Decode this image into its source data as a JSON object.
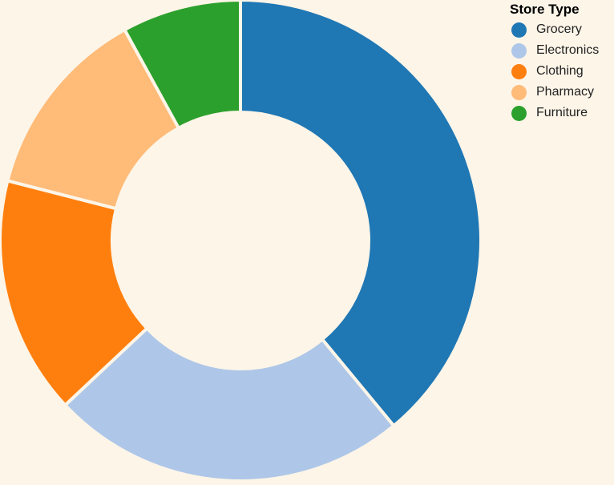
{
  "chart_data": {
    "type": "pie",
    "variant": "donut",
    "legend": {
      "title": "Store Type",
      "position": "top-right"
    },
    "slices": [
      {
        "label": "Grocery",
        "value": 39,
        "color": "#1f77b4"
      },
      {
        "label": "Electronics",
        "value": 24,
        "color": "#aec7e8"
      },
      {
        "label": "Clothing",
        "value": 16,
        "color": "#ff7f0e"
      },
      {
        "label": "Pharmacy",
        "value": 13,
        "color": "#ffbb78"
      },
      {
        "label": "Furniture",
        "value": 8,
        "color": "#2ca02c"
      }
    ]
  }
}
